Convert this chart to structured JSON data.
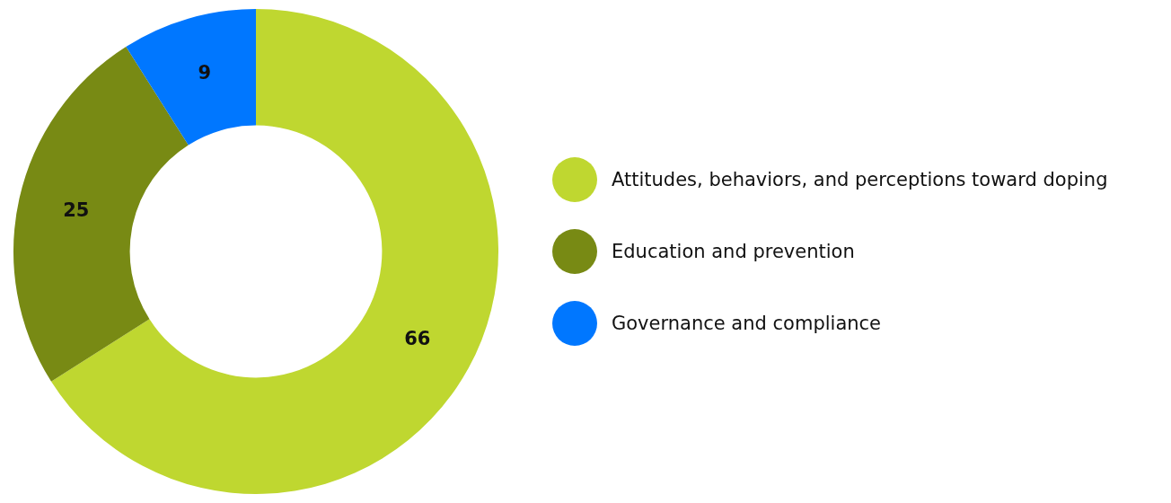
{
  "chart_data": {
    "type": "donut",
    "categories": [
      "Attitudes, behaviors, and perceptions toward doping",
      "Education and prevention",
      "Governance and compliance"
    ],
    "values": [
      66,
      25,
      9
    ],
    "colors": [
      "#bfd730",
      "#788a14",
      "#0077ff"
    ],
    "data_labels": true,
    "legend": "right"
  }
}
